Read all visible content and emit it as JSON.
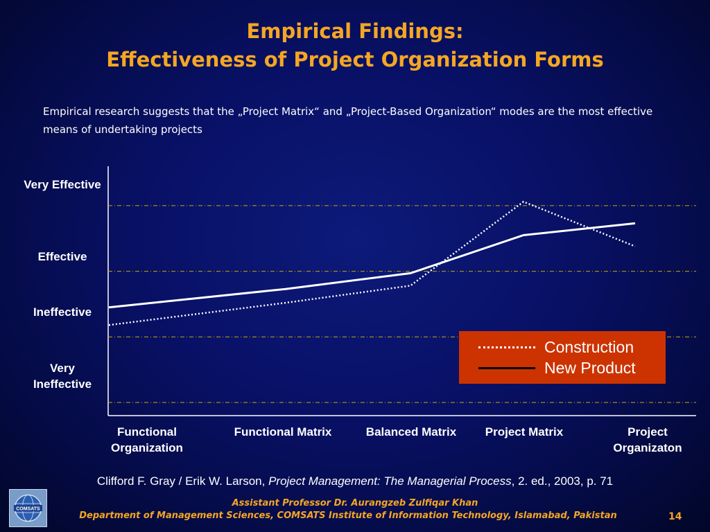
{
  "title": {
    "line1": "Empirical Findings:",
    "line2": "Effectiveness of Project Organization Forms"
  },
  "subtitle": "Empirical research suggests that the „Project Matrix“ and „Project-Based Organization“ modes are the most effective means of undertaking projects",
  "chart_data": {
    "type": "line",
    "categories": [
      "Functional Organization",
      "Functional Matrix",
      "Balanced Matrix",
      "Project Matrix",
      "Project Organizaton"
    ],
    "y_levels": [
      "Very Ineffective",
      "Ineffective",
      "Effective",
      "Very Effective"
    ],
    "ylim": [
      0.8,
      4.6
    ],
    "series": [
      {
        "name": "Construction",
        "style": "dotted",
        "color": "#ffffff",
        "values": [
          2.18,
          2.52,
          2.78,
          4.06,
          3.38
        ]
      },
      {
        "name": "New Product",
        "style": "solid",
        "color": "#ffffff",
        "values": [
          2.45,
          2.73,
          2.97,
          3.55,
          3.73
        ]
      }
    ],
    "gridlines": "dash-dot",
    "grid_color": "#c8a800",
    "legend_position": "lower-right",
    "legend_background": "#cc3300"
  },
  "legend": {
    "construction_label": "Construction",
    "new_product_label": "New Product"
  },
  "y_labels": {
    "very_effective": "Very Effective",
    "effective": "Effective",
    "ineffective": "Ineffective",
    "very_ineffective": "Very Ineffective"
  },
  "x_labels": {
    "c1": "Functional Organization",
    "c2": "Functional Matrix",
    "c3": "Balanced Matrix",
    "c4": "Project Matrix",
    "c5": "Project Organizaton"
  },
  "citation": {
    "authors": "Clifford F. Gray / Erik W. Larson, ",
    "book": "Project Management: The Managerial Process",
    "edition": ", 2. ed., 2003, p. 71"
  },
  "logo_text": "COMSATS",
  "footer": {
    "line1": "Assistant Professor Dr. Aurangzeb Zulfiqar Khan",
    "line2": "Department of Management Sciences, COMSATS Institute of Information Technology, Islamabad, Pakistan"
  },
  "page_number": "14",
  "colors": {
    "title": "#f5a623",
    "background": "#081064",
    "legend_bg": "#cc3300"
  }
}
